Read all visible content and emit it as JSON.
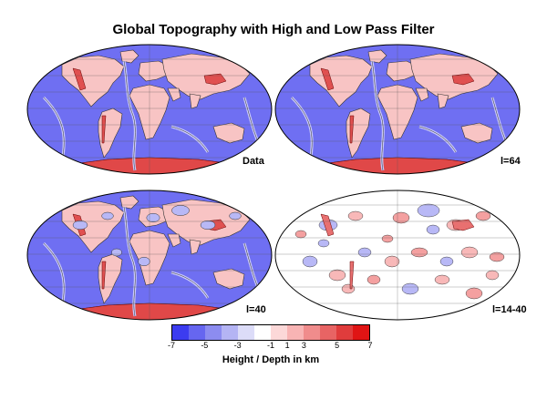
{
  "title": "Global Topography with High and Low Pass Filter",
  "panels": [
    {
      "label": "Data",
      "mode": "data"
    },
    {
      "label": "l=64",
      "mode": "data"
    },
    {
      "label": "l=40",
      "mode": "smooth"
    },
    {
      "label": "l=14-40",
      "mode": "filter"
    }
  ],
  "colorbar": {
    "title": "Height / Depth in km",
    "ticks": [
      "-7",
      "-5",
      "-3",
      "-1",
      "1",
      "3",
      "5",
      "7"
    ],
    "colors": [
      "#3c3cf0",
      "#6666f0",
      "#8c8cf0",
      "#b4b4f4",
      "#dcdcf8",
      "#ffffff",
      "#fcd8d8",
      "#f8b4b4",
      "#f08c8c",
      "#e86464",
      "#e03c3c",
      "#e01414"
    ]
  }
}
